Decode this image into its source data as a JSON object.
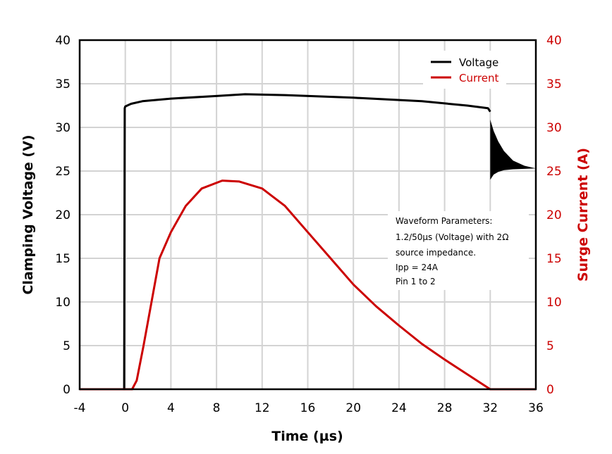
{
  "chart_data": {
    "type": "line",
    "xlabel": "Time (µs)",
    "ylabel_left": "Clamping Voltage (V)",
    "ylabel_right": "Surge Current (A)",
    "xlim": [
      -4,
      36
    ],
    "ylim_left": [
      0,
      40
    ],
    "ylim_right": [
      0,
      40
    ],
    "x_ticks": [
      -4,
      0,
      4,
      8,
      12,
      16,
      20,
      24,
      28,
      32,
      36
    ],
    "y_ticks": [
      0,
      5,
      10,
      15,
      20,
      25,
      30,
      35,
      40
    ],
    "grid": true,
    "legend_position": "top-right",
    "colors": {
      "voltage": "#000000",
      "current": "#cc0000",
      "grid": "#d3d3d3"
    },
    "series": [
      {
        "name": "Voltage",
        "axis": "left",
        "x": [
          -4,
          -0.1,
          -0.05,
          0,
          0.5,
          1.5,
          4,
          8,
          10.5,
          14,
          20,
          26,
          30,
          31.8,
          32
        ],
        "y": [
          0,
          0,
          32.2,
          32.4,
          32.7,
          33.0,
          33.3,
          33.6,
          33.8,
          33.7,
          33.4,
          33.0,
          32.5,
          32.2,
          31.8
        ],
        "ringing_envelope": {
          "x": [
            32,
            32.3,
            32.7,
            33.2,
            34,
            35,
            36
          ],
          "upper": [
            30.9,
            29.6,
            28.4,
            27.3,
            26.2,
            25.6,
            25.3
          ],
          "lower": [
            24.0,
            24.6,
            24.9,
            25.1,
            25.2,
            25.25,
            25.3
          ]
        }
      },
      {
        "name": "Current",
        "axis": "right",
        "x": [
          -4,
          0.6,
          1.0,
          1.6,
          2.3,
          3.0,
          4,
          5.3,
          6.7,
          8.5,
          10,
          12,
          14,
          16,
          18,
          20,
          22,
          24,
          26,
          28,
          30,
          32,
          36
        ],
        "y": [
          0,
          0,
          1,
          5,
          10,
          15,
          18,
          21,
          23,
          23.9,
          23.8,
          23,
          21,
          18,
          15,
          12,
          9.5,
          7.3,
          5.2,
          3.4,
          1.7,
          0,
          0
        ]
      }
    ],
    "annotation": [
      "Waveform Parameters:",
      "1.2/50µs (Voltage) with 2Ω",
      "source impedance.",
      "Ipp = 24A",
      "Pin 1 to 2"
    ]
  }
}
